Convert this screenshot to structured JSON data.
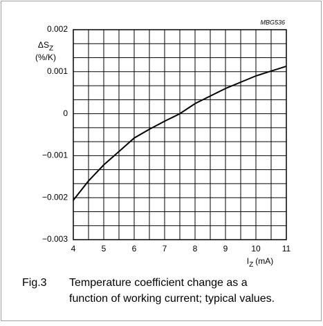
{
  "chart_data": {
    "type": "line",
    "annotation": "MBG536",
    "ylabel": {
      "symbol": "ΔS",
      "subscript": "Z",
      "unit": "(%/K)"
    },
    "xlabel": {
      "symbol": "I",
      "subscript": "Z",
      "unit": "(mA)"
    },
    "x": [
      4,
      4.5,
      5,
      5.5,
      6,
      6.5,
      7,
      7.5,
      8,
      9,
      10,
      11
    ],
    "series": [
      {
        "color": "#000000",
        "values": [
          -0.00206,
          -0.0016,
          -0.00122,
          -0.0009,
          -0.00058,
          -0.00037,
          -0.00018,
          0,
          0.00024,
          0.0006,
          0.0009,
          0.00113
        ]
      }
    ],
    "xlim": [
      4,
      11
    ],
    "xticks": [
      4,
      5,
      6,
      7,
      8,
      9,
      10,
      11
    ],
    "ylim": [
      -0.003,
      0.002
    ],
    "yticks": [
      {
        "value": -0.003,
        "label": "−0.003"
      },
      {
        "value": -0.002,
        "label": "−0.002"
      },
      {
        "value": -0.001,
        "label": "−0.001"
      },
      0,
      0.001,
      0.002
    ],
    "grid": true,
    "caption": {
      "label": "Fig.3",
      "lines": [
        "Temperature coefficient change as a",
        "function of working current; typical values."
      ]
    }
  }
}
